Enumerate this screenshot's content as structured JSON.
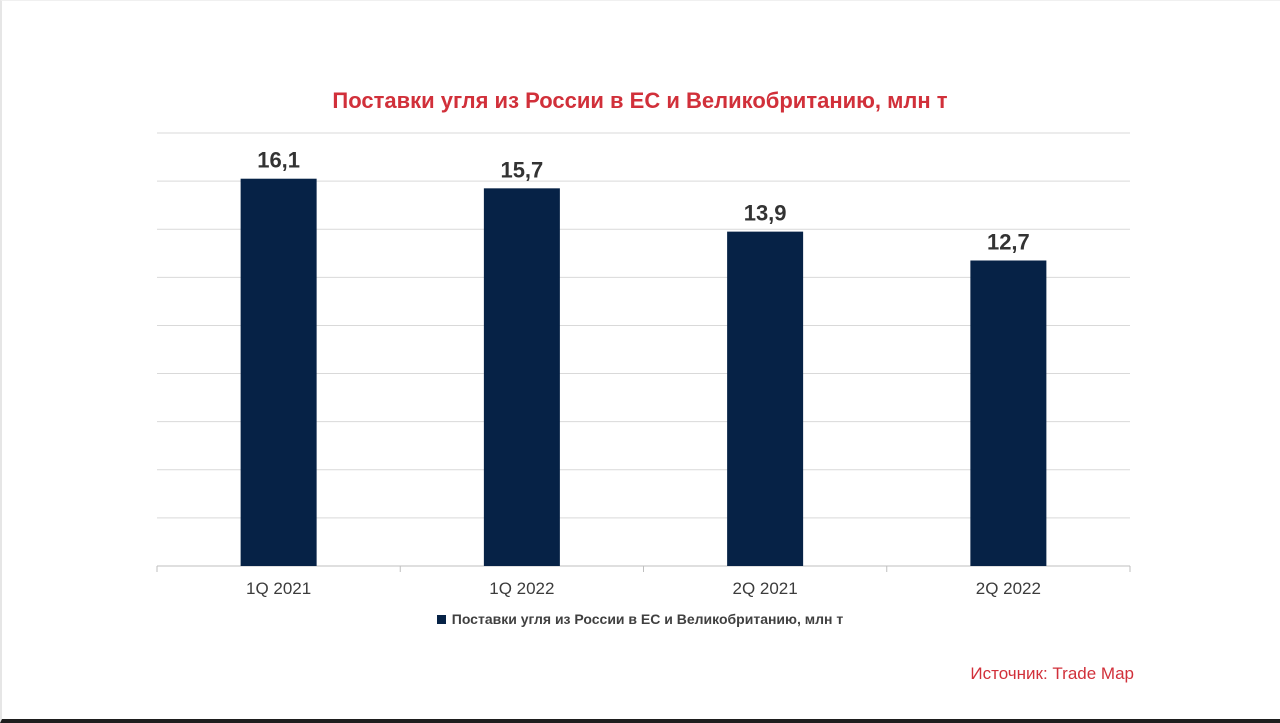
{
  "chart_data": {
    "type": "bar",
    "title": "Поставки угля из России в ЕС и Великобританию, млн т",
    "categories": [
      "1Q 2021",
      "1Q 2022",
      "2Q 2021",
      "2Q 2022"
    ],
    "values": [
      16.1,
      15.7,
      13.9,
      12.7
    ],
    "data_labels": [
      "16,1",
      "15,7",
      "13,9",
      "12,7"
    ],
    "series": [
      {
        "name": "Поставки угля из России в ЕС и Великобританию, млн т",
        "values": [
          16.1,
          15.7,
          13.9,
          12.7
        ]
      }
    ],
    "ylim": [
      0,
      18
    ],
    "y_gridline_step": 2,
    "y_tick_labels_shown": false,
    "grid": true,
    "legend_position": "bottom",
    "bar_color": "#062246",
    "title_color": "#d1303a"
  },
  "legend": {
    "label": "Поставки угля из России в ЕС и Великобританию, млн т"
  },
  "source": "Источник: Trade Map"
}
